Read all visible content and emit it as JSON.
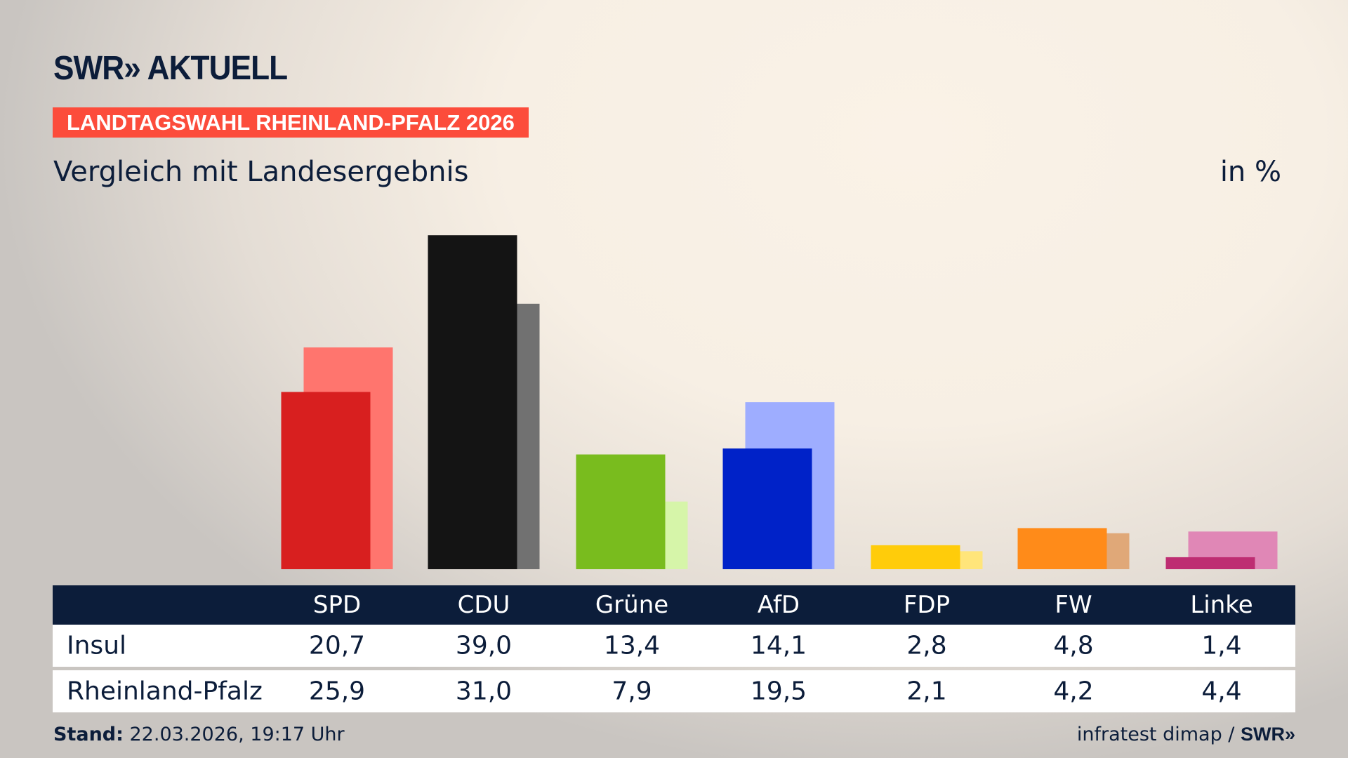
{
  "header": {
    "logo": "SWR» AKTUELL",
    "banner": "LANDTAGSWAHL RHEINLAND-PFALZ 2026",
    "subtitle": "Vergleich mit Landesergebnis",
    "unit": "in %"
  },
  "chart_data": {
    "type": "bar",
    "title": "Vergleich mit Landesergebnis",
    "ylabel": "in %",
    "categories": [
      "SPD",
      "CDU",
      "Grüne",
      "AfD",
      "FDP",
      "FW",
      "Linke"
    ],
    "series": [
      {
        "name": "Insul",
        "values": [
          20.7,
          39.0,
          13.4,
          14.1,
          2.8,
          4.8,
          1.4
        ],
        "display": [
          "20,7",
          "39,0",
          "13,4",
          "14,1",
          "2,8",
          "4,8",
          "1,4"
        ],
        "colors": [
          "#d81f1f",
          "#141414",
          "#79bc1e",
          "#0022c8",
          "#ffcc0a",
          "#ff8b19",
          "#be2d72"
        ]
      },
      {
        "name": "Rheinland-Pfalz",
        "values": [
          25.9,
          31.0,
          7.9,
          19.5,
          2.1,
          4.2,
          4.4
        ],
        "display": [
          "25,9",
          "31,0",
          "7,9",
          "19,5",
          "2,1",
          "4,2",
          "4,4"
        ],
        "colors": [
          "#ff756e",
          "#717171",
          "#d6f5a9",
          "#9eadff",
          "#ffe57a",
          "#e0a878",
          "#e087b6"
        ]
      }
    ],
    "grid": false,
    "ylim": [
      0,
      40
    ]
  },
  "footer": {
    "stand_label": "Stand:",
    "stand_value": " 22.03.2026, 19:17 Uhr",
    "source": "infratest dimap / ",
    "source_logo": "SWR»"
  }
}
